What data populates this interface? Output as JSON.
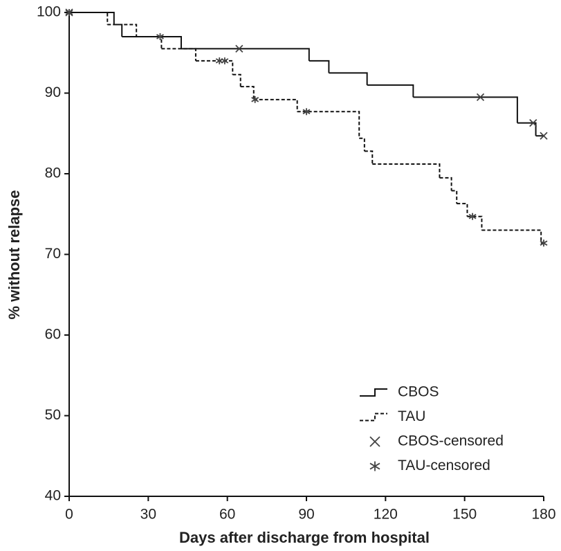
{
  "chart_data": {
    "type": "step",
    "x_label": "Days after discharge from hospital",
    "y_label": "% without relapse",
    "xlim": [
      0,
      180
    ],
    "xticks": [
      0,
      30,
      60,
      90,
      120,
      150,
      180
    ],
    "ylim": [
      40,
      100
    ],
    "yticks": [
      40,
      50,
      60,
      70,
      80,
      90,
      100
    ],
    "legend": "lower right",
    "series": [
      {
        "name": "CBOS",
        "color": "#111111",
        "style": "solid",
        "x": [
          0,
          17,
          20,
          42.5,
          91,
          98.5,
          113,
          130.5,
          170,
          177,
          180
        ],
        "values": [
          100,
          98.5,
          97,
          95.5,
          94,
          92.5,
          91,
          89.5,
          86.3,
          84.7,
          84.7
        ]
      },
      {
        "name": "TAU",
        "color": "#111111",
        "style": "dashed",
        "x": [
          0,
          14.5,
          25.5,
          35,
          48,
          62,
          65,
          70,
          86.5,
          110,
          112,
          115,
          140.5,
          145,
          147,
          151,
          156.5,
          179,
          180
        ],
        "values": [
          100,
          98.5,
          97,
          95.5,
          94,
          92.3,
          90.8,
          89.2,
          87.7,
          84.4,
          82.8,
          81.2,
          79.5,
          77.9,
          76.3,
          74.7,
          73,
          71.4,
          71.4
        ]
      },
      {
        "name": "CBOS-censored",
        "color": "#444444",
        "marker": "x",
        "x": [
          0,
          64.5,
          156,
          176,
          180
        ],
        "values": [
          100,
          95.5,
          89.5,
          86.3,
          84.7
        ]
      },
      {
        "name": "TAU-censored",
        "color": "#444444",
        "marker": "star",
        "x": [
          0,
          34.5,
          57,
          59,
          70.5,
          90,
          153,
          180
        ],
        "values": [
          100,
          97,
          94,
          94,
          89.2,
          87.7,
          74.7,
          71.4
        ]
      }
    ]
  }
}
